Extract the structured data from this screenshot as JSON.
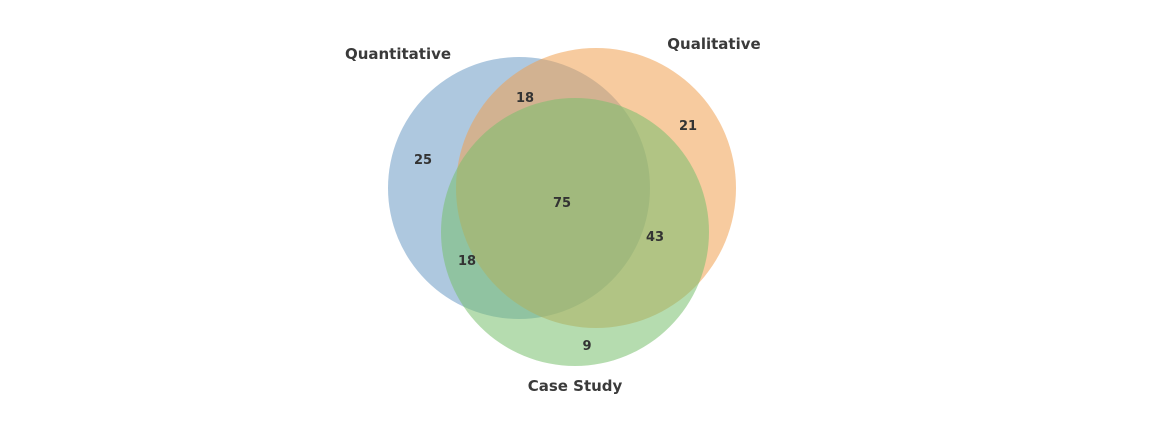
{
  "sets": {
    "quantitative": {
      "label": "Quantitative",
      "color": "#6b9ac4"
    },
    "qualitative": {
      "label": "Qualitative",
      "color": "#f0a050"
    },
    "case_study": {
      "label": "Case Study",
      "color": "#78c06e"
    }
  },
  "regions": {
    "quantitative_only": "25",
    "qualitative_only": "21",
    "case_study_only": "9",
    "quantitative_qualitative": "18",
    "quantitative_case_study": "18",
    "qualitative_case_study": "43",
    "all_three": "75"
  }
}
